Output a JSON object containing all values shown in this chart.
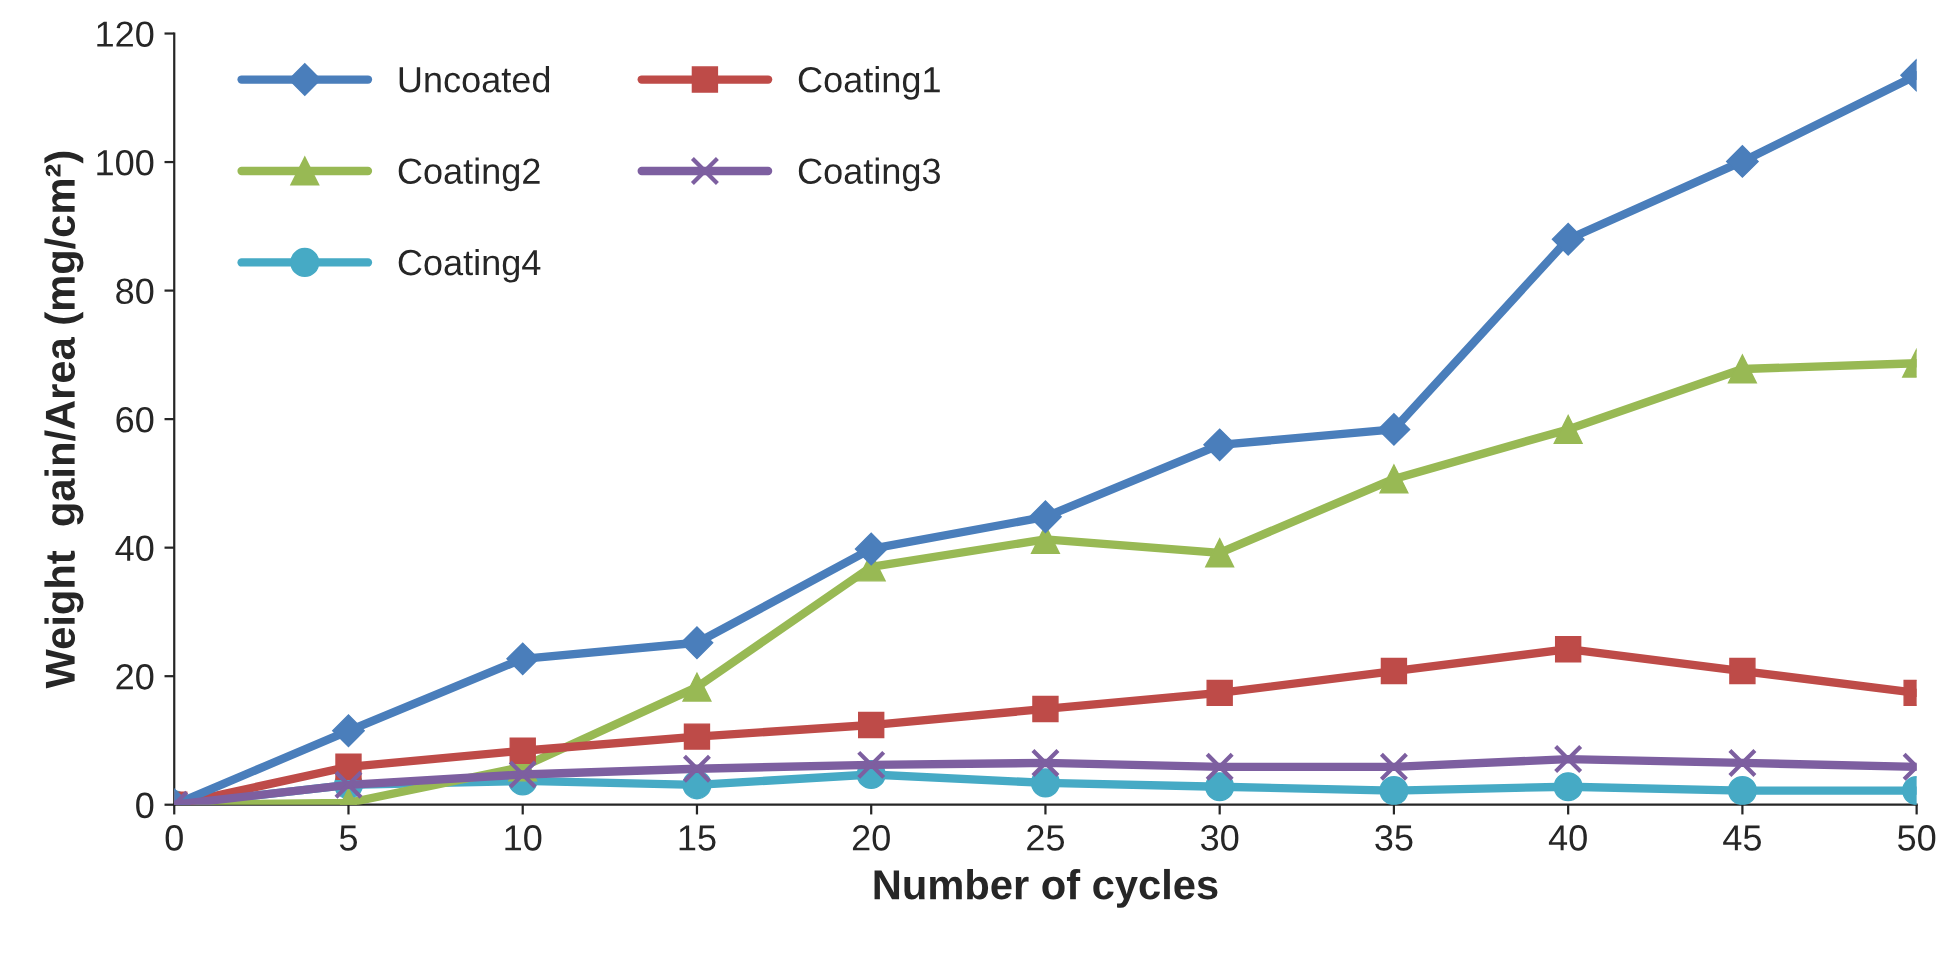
{
  "chart_data": {
    "type": "line",
    "xlabel": "Number of cycles",
    "ylabel": "Weight  gain/Area (mg/cm²)",
    "x": [
      0,
      5,
      10,
      15,
      20,
      25,
      30,
      35,
      40,
      45,
      50
    ],
    "xlim": [
      0,
      50
    ],
    "xticks": [
      0,
      5,
      10,
      15,
      20,
      25,
      30,
      35,
      40,
      45,
      50
    ],
    "ylim": [
      0,
      120
    ],
    "yticks": [
      0,
      20,
      40,
      60,
      80,
      100,
      120
    ],
    "grid": false,
    "legend": "top left",
    "line_style": "solid",
    "series": [
      {
        "name": "Uncoated",
        "color": "#4a7ebb",
        "marker": "diamond",
        "values": [
          0,
          11.5,
          22.7,
          25.2,
          39.8,
          44.8,
          56,
          58.4,
          88,
          100.1,
          113.5
        ]
      },
      {
        "name": "Coating1",
        "color": "#be4b48",
        "marker": "square",
        "values": [
          0,
          5.9,
          8.4,
          10.6,
          12.4,
          14.9,
          17.4,
          20.8,
          24.2,
          20.8,
          17.4
        ]
      },
      {
        "name": "Coating2",
        "color": "#98b954",
        "marker": "triangle",
        "values": [
          0,
          0.3,
          5.9,
          18.3,
          37,
          41.3,
          39.2,
          50.7,
          58.4,
          67.8,
          68.7
        ]
      },
      {
        "name": "Coating3",
        "color": "#7d5fa0",
        "marker": "cross",
        "values": [
          0,
          3.1,
          4.7,
          5.6,
          6.2,
          6.5,
          5.9,
          5.9,
          7.1,
          6.5,
          5.9
        ]
      },
      {
        "name": "Coating4",
        "color": "#46aac5",
        "marker": "circle",
        "values": [
          0,
          3.1,
          3.7,
          3.1,
          4.7,
          3.4,
          2.8,
          2.2,
          2.8,
          2.2,
          2.2
        ]
      }
    ]
  }
}
